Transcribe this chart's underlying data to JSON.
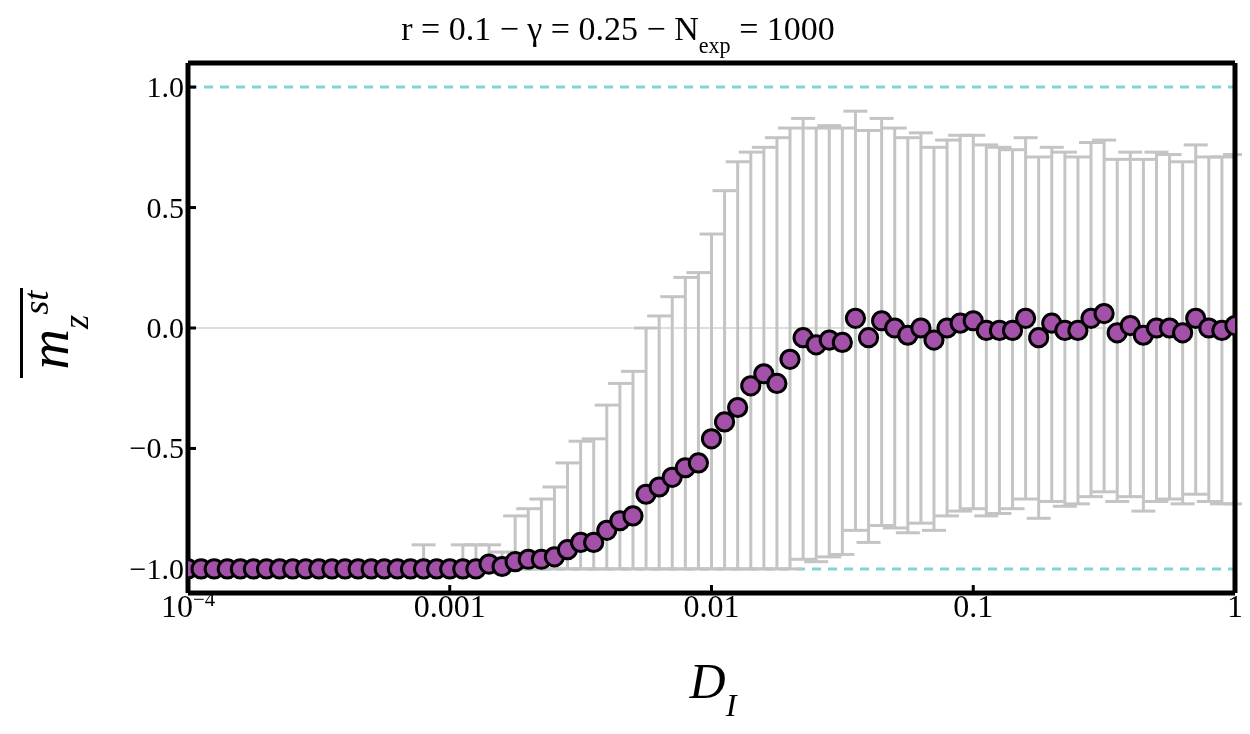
{
  "chart_data": {
    "type": "scatter",
    "title": "r = 0.1 − γ = 0.25 − N$_{exp}$ = 1000",
    "xlabel": "D$_{I}$",
    "ylabel": "m$_{z}$$^{st}$",
    "log": "x",
    "xlim": [
      0.0001,
      1
    ],
    "xticks": [
      {
        "value": 0.0001,
        "label": "10$^{−4}$"
      },
      0.001,
      0.01,
      0.1,
      1
    ],
    "ylim": [
      -1.1,
      1.1
    ],
    "yticks": [
      {
        "value": -1,
        "label": "−1.0"
      },
      {
        "value": -0.5,
        "label": "−0.5"
      },
      {
        "value": 0,
        "label": "0.0"
      },
      {
        "value": 0.5,
        "label": "0.5"
      },
      {
        "value": 1,
        "label": "1.0"
      }
    ],
    "marker": "circle",
    "color": "#a250a8",
    "x": [
      0.0001,
      0.0001122,
      0.0001259,
      0.0001413,
      0.0001585,
      0.0001778,
      0.0001995,
      0.0002239,
      0.0002512,
      0.0002818,
      0.0003162,
      0.0003548,
      0.0003981,
      0.0004467,
      0.0005012,
      0.0005623,
      0.000631,
      0.0007079,
      0.0007943,
      0.0008913,
      0.001,
      0.001122,
      0.001259,
      0.001413,
      0.001585,
      0.001778,
      0.001995,
      0.002239,
      0.002512,
      0.002818,
      0.003162,
      0.003548,
      0.003981,
      0.004467,
      0.005012,
      0.005623,
      0.00631,
      0.007079,
      0.007943,
      0.008913,
      0.01,
      0.01122,
      0.01259,
      0.01413,
      0.01585,
      0.01778,
      0.01995,
      0.02239,
      0.02512,
      0.02818,
      0.03162,
      0.03548,
      0.03981,
      0.04467,
      0.05012,
      0.05623,
      0.0631,
      0.07079,
      0.07943,
      0.08913,
      0.1,
      0.1122,
      0.1259,
      0.1413,
      0.1585,
      0.1778,
      0.1995,
      0.2239,
      0.2512,
      0.2818,
      0.3162,
      0.3548,
      0.3981,
      0.4467,
      0.5012,
      0.5623,
      0.631,
      0.7079,
      0.7943,
      0.8913,
      1
    ],
    "values": [
      -1,
      -1,
      -1,
      -1,
      -1,
      -1,
      -1,
      -1,
      -1,
      -1,
      -1,
      -1,
      -1,
      -1,
      -1,
      -1,
      -1,
      -1,
      -1,
      -1,
      -1,
      -1,
      -1,
      -0.98,
      -0.99,
      -0.97,
      -0.96,
      -0.96,
      -0.95,
      -0.92,
      -0.89,
      -0.89,
      -0.84,
      -0.8,
      -0.78,
      -0.69,
      -0.66,
      -0.62,
      -0.58,
      -0.56,
      -0.46,
      -0.39,
      -0.33,
      -0.24,
      -0.19,
      -0.23,
      -0.13,
      -0.04,
      -0.07,
      -0.05,
      -0.06,
      0.04,
      -0.04,
      0.03,
      0,
      -0.03,
      0,
      -0.05,
      0,
      0.02,
      0.03,
      -0.01,
      -0.01,
      -0.01,
      0.04,
      -0.04,
      0.02,
      -0.01,
      -0.01,
      0.04,
      0.06,
      -0.02,
      0.01,
      -0.03,
      0,
      0,
      -0.02,
      0.04,
      0,
      -0.01,
      0.01
    ],
    "errors": [
      null,
      null,
      null,
      null,
      null,
      null,
      null,
      null,
      null,
      null,
      null,
      null,
      null,
      null,
      null,
      null,
      null,
      null,
      [
        -1,
        -0.9
      ],
      null,
      null,
      [
        -1,
        -0.9
      ],
      [
        -1,
        -0.9
      ],
      [
        -1,
        -0.9
      ],
      [
        -1,
        -0.93
      ],
      [
        -1,
        -0.78
      ],
      [
        -1,
        -0.75
      ],
      [
        -1,
        -0.71
      ],
      [
        -1,
        -0.66
      ],
      [
        -1,
        -0.56
      ],
      [
        -1,
        -0.47
      ],
      [
        -1,
        -0.46
      ],
      [
        -1,
        -0.32
      ],
      [
        -1,
        -0.23
      ],
      [
        -1,
        -0.18
      ],
      [
        -1,
        0
      ],
      [
        -1,
        0.05
      ],
      [
        -1,
        0.13
      ],
      [
        -1,
        0.21
      ],
      [
        -1,
        0.23
      ],
      [
        -1,
        0.39
      ],
      [
        -1,
        0.57
      ],
      [
        -1,
        0.69
      ],
      [
        -1,
        0.73
      ],
      [
        -1,
        0.75
      ],
      [
        -1,
        0.79
      ],
      [
        -1,
        0.83
      ],
      [
        -0.96,
        0.87
      ],
      [
        -0.97,
        0.83
      ],
      [
        -0.95,
        0.84
      ],
      [
        -0.94,
        0.83
      ],
      [
        -0.84,
        0.9
      ],
      [
        -0.89,
        0.82
      ],
      [
        -0.82,
        0.87
      ],
      [
        -0.83,
        0.83
      ],
      [
        -0.85,
        0.79
      ],
      [
        -0.81,
        0.81
      ],
      [
        -0.84,
        0.75
      ],
      [
        -0.78,
        0.78
      ],
      [
        -0.76,
        0.8
      ],
      [
        -0.75,
        0.8
      ],
      [
        -0.78,
        0.76
      ],
      [
        -0.77,
        0.75
      ],
      [
        -0.75,
        0.74
      ],
      [
        -0.71,
        0.79
      ],
      [
        -0.79,
        0.71
      ],
      [
        -0.72,
        0.75
      ],
      [
        -0.74,
        0.73
      ],
      [
        -0.73,
        0.71
      ],
      [
        -0.7,
        0.77
      ],
      [
        -0.68,
        0.78
      ],
      [
        -0.72,
        0.7
      ],
      [
        -0.7,
        0.73
      ],
      [
        -0.76,
        0.7
      ],
      [
        -0.72,
        0.73
      ],
      [
        -0.71,
        0.72
      ],
      [
        -0.73,
        0.69
      ],
      [
        -0.69,
        0.76
      ],
      [
        -0.72,
        0.71
      ],
      [
        -0.73,
        0.71
      ],
      [
        -0.73,
        0.72
      ]
    ],
    "ref_lines": [
      {
        "axis": "y",
        "value": 1,
        "color": "#7fd6d6",
        "line_style": "dashed"
      },
      {
        "axis": "y",
        "value": -1,
        "color": "#7fd6d6",
        "line_style": "dashed"
      },
      {
        "axis": "y",
        "value": 0,
        "color": "#bdbdbd",
        "line_style": "solid"
      }
    ]
  }
}
